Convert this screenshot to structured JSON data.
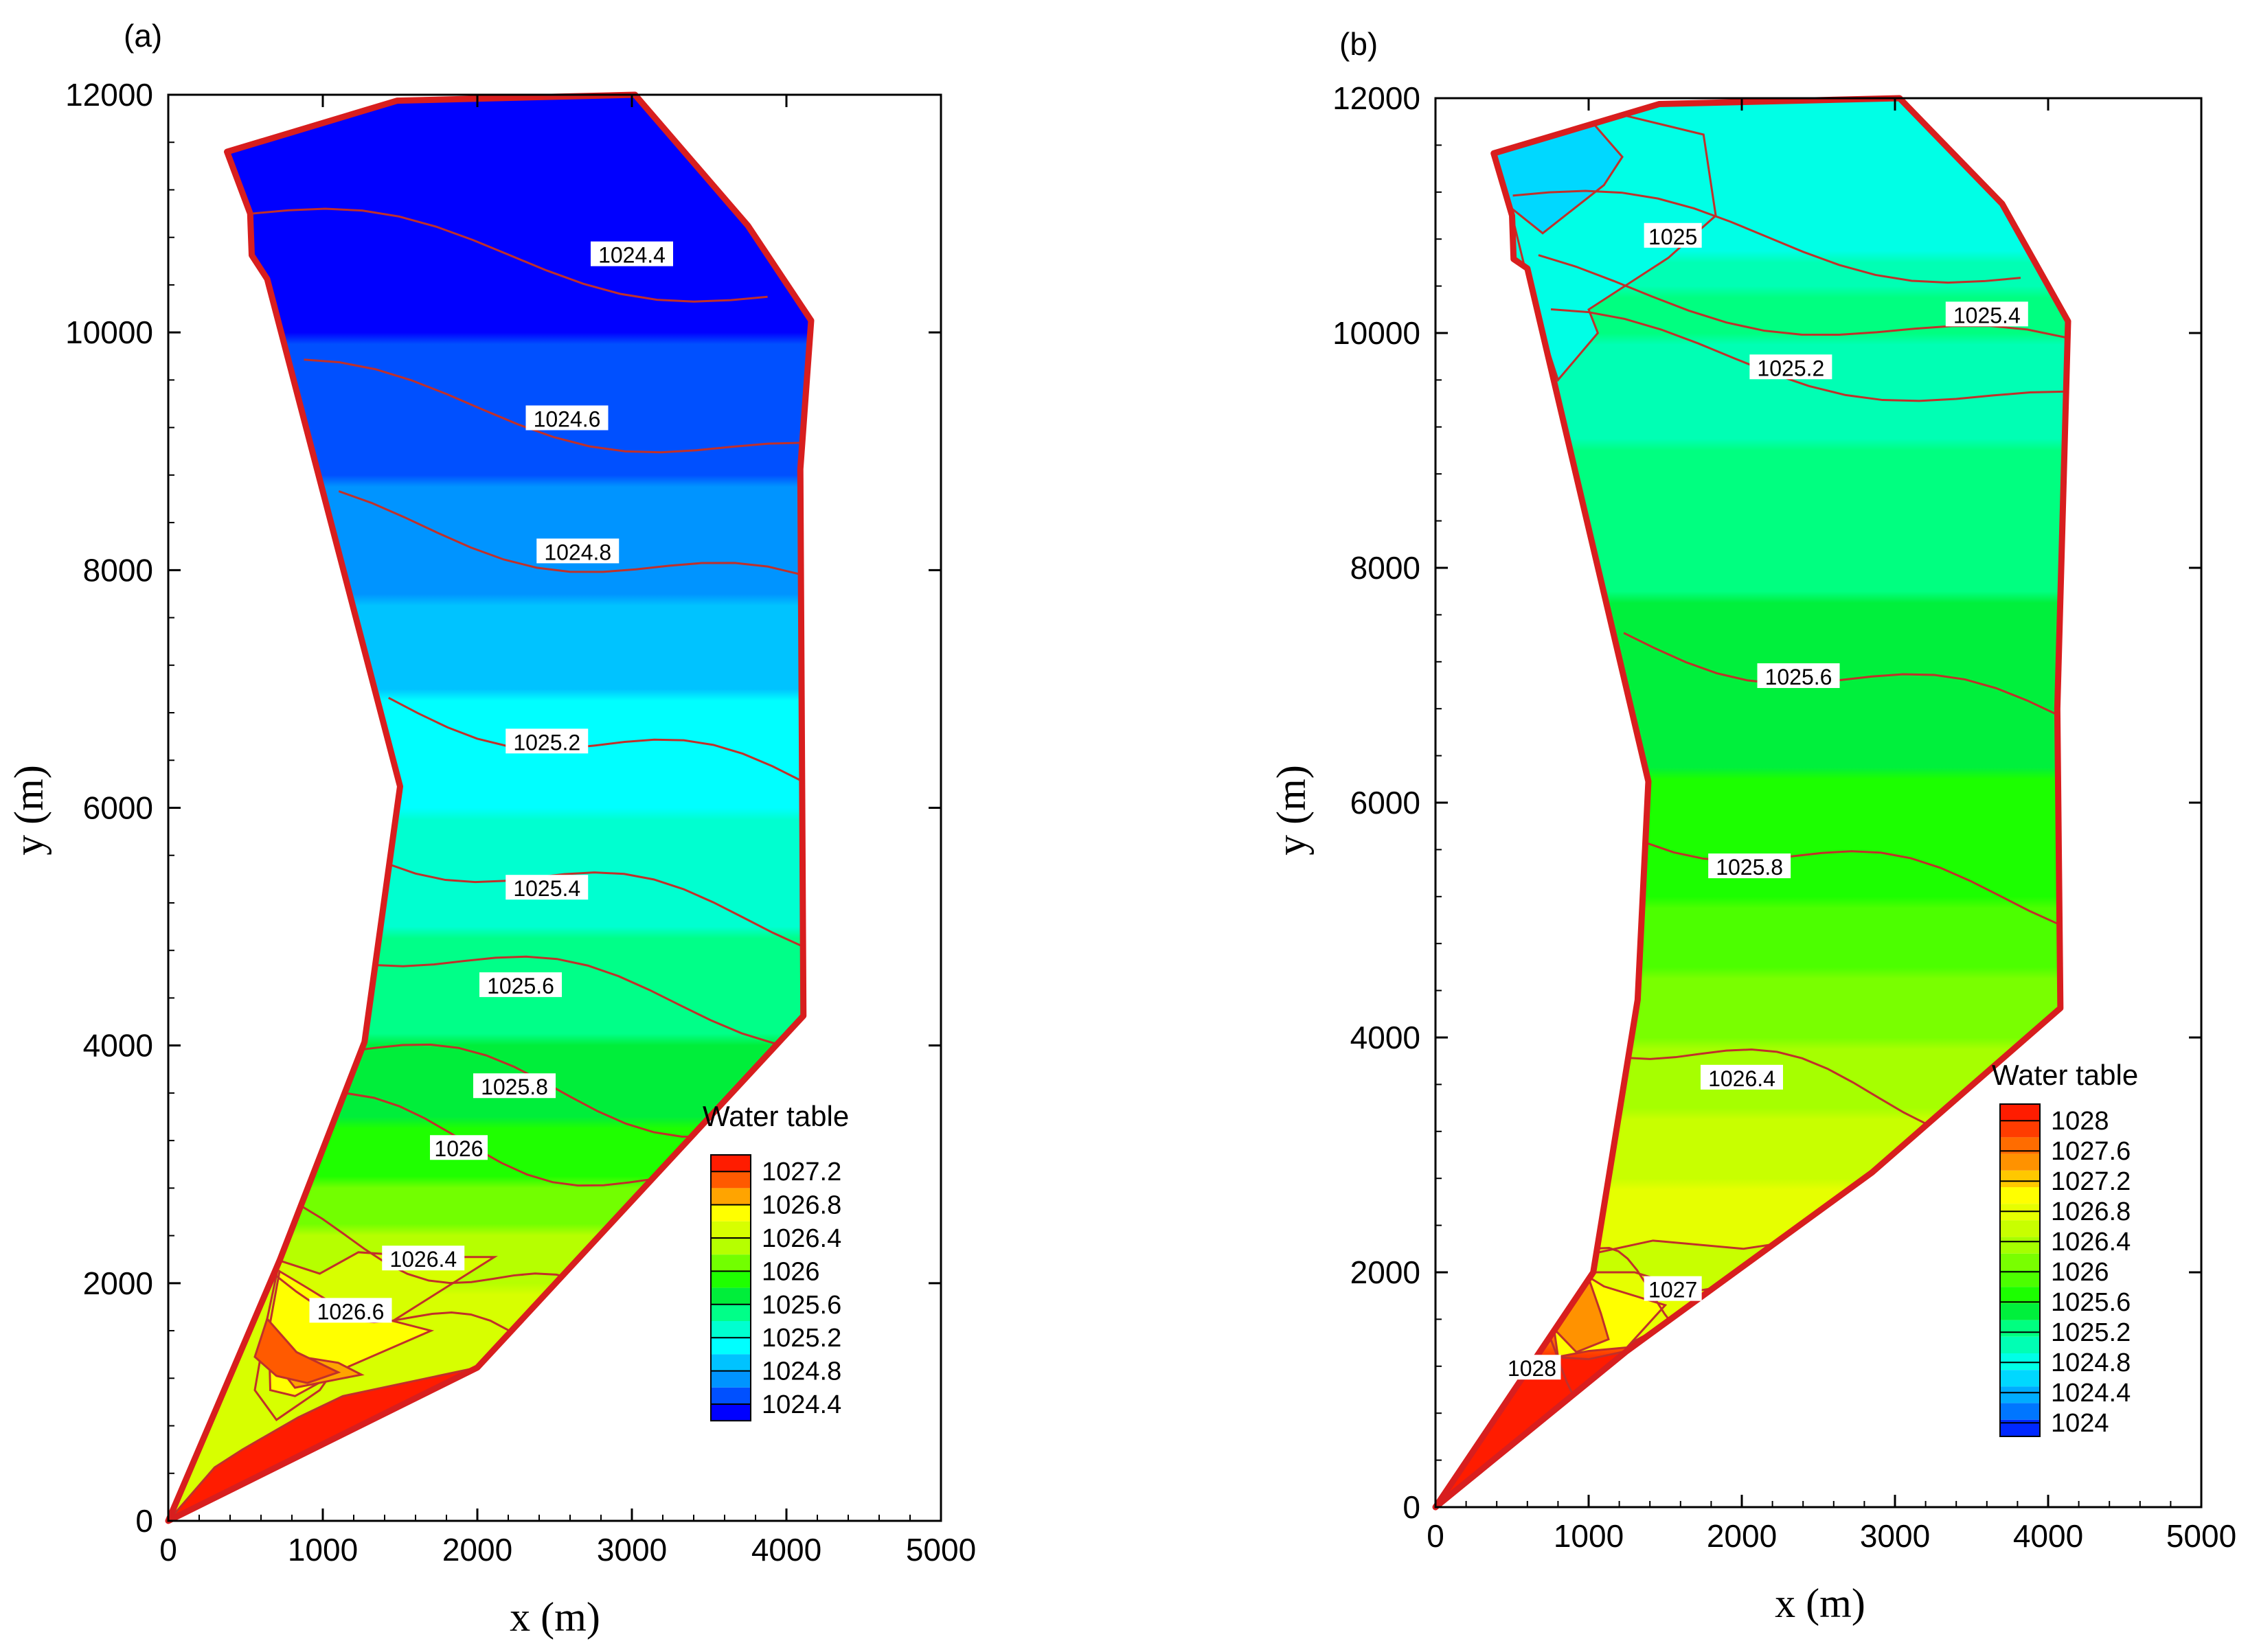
{
  "chart_data": [
    {
      "type": "contour",
      "panel_label": "(a)",
      "title": "",
      "xlabel": "x (m)",
      "ylabel": "y (m)",
      "xlim": [
        0,
        5000
      ],
      "ylim": [
        0,
        12000
      ],
      "xticks": [
        "0",
        "1000",
        "2000",
        "3000",
        "4000",
        "5000"
      ],
      "yticks": [
        "0",
        "2000",
        "4000",
        "6000",
        "8000",
        "10000",
        "12000"
      ],
      "legend": {
        "title": "Water table",
        "placement": "bottom-right",
        "levels": [
          1027.4,
          1027.2,
          1027.0,
          1026.8,
          1026.6,
          1026.4,
          1026.2,
          1026.0,
          1025.8,
          1025.6,
          1025.4,
          1025.2,
          1025.0,
          1024.8,
          1024.6,
          1024.4
        ],
        "colors": [
          "#ff1c00",
          "#ff5a00",
          "#ffa400",
          "#ffff00",
          "#d7ff00",
          "#b6ff00",
          "#72ff00",
          "#1fff00",
          "#00ee3a",
          "#00ff88",
          "#00ffd0",
          "#00ffff",
          "#00c3ff",
          "#0094ff",
          "#0050ff",
          "#0000ff"
        ],
        "labels": [
          "1027.2",
          "1026.8",
          "1026.4",
          "1026",
          "1025.6",
          "1025.2",
          "1024.8",
          "1024.4"
        ]
      },
      "boundary": [
        [
          0,
          0
        ],
        [
          2000,
          1290
        ],
        [
          4110,
          4250
        ],
        [
          4090,
          8850
        ],
        [
          4160,
          10100
        ],
        [
          3750,
          10900
        ],
        [
          3020,
          12000
        ],
        [
          1480,
          11950
        ],
        [
          380,
          11520
        ],
        [
          530,
          11000
        ],
        [
          540,
          10650
        ],
        [
          640,
          10450
        ],
        [
          1500,
          6180
        ],
        [
          1270,
          4030
        ],
        [
          720,
          2190
        ]
      ],
      "zones": [
        {
          "level": 1026.6,
          "points": [
            [
              720,
              2190
            ],
            [
              980,
              2080
            ],
            [
              1230,
              2260
            ],
            [
              1700,
              2220
            ],
            [
              2110,
              2220
            ],
            [
              1170,
              1450
            ],
            [
              980,
              1100
            ],
            [
              700,
              850
            ],
            [
              560,
              1100
            ],
            [
              640,
              1700
            ]
          ]
        },
        {
          "level": 1026.8,
          "points": [
            [
              720,
              2100
            ],
            [
              900,
              1960
            ],
            [
              1100,
              1800
            ],
            [
              1700,
              1600
            ],
            [
              1170,
              1300
            ],
            [
              820,
              1050
            ],
            [
              660,
              1100
            ],
            [
              650,
              1600
            ]
          ]
        },
        {
          "level": 1027.0,
          "points": [
            [
              700,
              1320
            ],
            [
              820,
              1120
            ],
            [
              1130,
              1200
            ],
            [
              1250,
              1230
            ],
            [
              1100,
              1330
            ],
            [
              860,
              1380
            ]
          ]
        },
        {
          "level": 1027.2,
          "points": [
            [
              560,
              1380
            ],
            [
              700,
              1220
            ],
            [
              900,
              1160
            ],
            [
              1100,
              1250
            ],
            [
              830,
              1420
            ],
            [
              640,
              1700
            ]
          ]
        },
        {
          "level": 1027.4,
          "points": [
            [
              0,
              0
            ],
            [
              2000,
              1290
            ],
            [
              1130,
              1050
            ],
            [
              840,
              870
            ],
            [
              480,
              600
            ],
            [
              300,
              450
            ]
          ]
        }
      ],
      "contour_labels": [
        {
          "text": "1024.4",
          "x": 3000,
          "y": 10650
        },
        {
          "text": "1024.6",
          "x": 2580,
          "y": 9270
        },
        {
          "text": "1024.8",
          "x": 2650,
          "y": 8150
        },
        {
          "text": "1025.2",
          "x": 2450,
          "y": 6550
        },
        {
          "text": "1025.4",
          "x": 2450,
          "y": 5320
        },
        {
          "text": "1025.6",
          "x": 2280,
          "y": 4500
        },
        {
          "text": "1025.8",
          "x": 2240,
          "y": 3650
        },
        {
          "text": "1026",
          "x": 1880,
          "y": 3130
        },
        {
          "text": "1026.4",
          "x": 1650,
          "y": 2200
        },
        {
          "text": "1026.6",
          "x": 1180,
          "y": 1760
        }
      ]
    },
    {
      "type": "contour",
      "panel_label": "(b)",
      "title": "",
      "xlabel": "x (m)",
      "ylabel": "y (m)",
      "xlim": [
        0,
        5000
      ],
      "ylim": [
        0,
        12000
      ],
      "xticks": [
        "0",
        "1000",
        "2000",
        "3000",
        "4000",
        "5000"
      ],
      "yticks": [
        "0",
        "2000",
        "4000",
        "6000",
        "8000",
        "10000",
        "12000"
      ],
      "legend": {
        "title": "Water table",
        "placement": "bottom-right",
        "levels": [
          1028.0,
          1027.8,
          1027.6,
          1027.4,
          1027.2,
          1027.0,
          1026.8,
          1026.6,
          1026.4,
          1026.2,
          1026.0,
          1025.8,
          1025.6,
          1025.4,
          1025.2,
          1025.0,
          1024.8,
          1024.6,
          1024.4,
          1024.2
        ],
        "colors": [
          "#ff1c00",
          "#ff3c00",
          "#ff6c00",
          "#ff9200",
          "#ffc800",
          "#ffff00",
          "#e6ff00",
          "#c8ff00",
          "#a6ff00",
          "#79ff00",
          "#4cff00",
          "#1cff00",
          "#00f03c",
          "#00ff80",
          "#00ffb4",
          "#00ffe6",
          "#00d8ff",
          "#00acff",
          "#0076ff",
          "#0028ff"
        ],
        "labels": [
          "1028",
          "1027.6",
          "1027.2",
          "1026.8",
          "1026.4",
          "1026",
          "1025.6",
          "1025.2",
          "1024.8",
          "1024.4",
          "1024"
        ]
      },
      "boundary": [
        [
          0,
          0
        ],
        [
          1250,
          1330
        ],
        [
          2850,
          2850
        ],
        [
          4080,
          4250
        ],
        [
          4060,
          6800
        ],
        [
          4130,
          10100
        ],
        [
          3700,
          11100
        ],
        [
          3030,
          12000
        ],
        [
          1460,
          11950
        ],
        [
          380,
          11530
        ],
        [
          500,
          11000
        ],
        [
          510,
          10630
        ],
        [
          600,
          10550
        ],
        [
          1390,
          6180
        ],
        [
          1320,
          4320
        ],
        [
          1030,
          2000
        ]
      ],
      "zones": [
        {
          "level": 1026.6,
          "points": [
            [
              1030,
              2160
            ],
            [
              1420,
              2270
            ],
            [
              2010,
              2200
            ],
            [
              2620,
              2320
            ],
            [
              1800,
              1820
            ],
            [
              1480,
              1730
            ],
            [
              1020,
              1650
            ]
          ]
        },
        {
          "level": 1026.8,
          "points": [
            [
              1020,
              2000
            ],
            [
              1300,
              2000
            ],
            [
              1700,
              1840
            ],
            [
              1980,
              1900
            ],
            [
              1820,
              1780
            ],
            [
              1250,
              1380
            ],
            [
              1130,
              1350
            ],
            [
              1000,
              1350
            ]
          ]
        },
        {
          "level": 1027.0,
          "points": [
            [
              700,
              2200
            ],
            [
              1100,
              1880
            ],
            [
              1500,
              1720
            ],
            [
              1250,
              1360
            ],
            [
              1000,
              1330
            ],
            [
              800,
              1280
            ]
          ]
        },
        {
          "level": 1027.4,
          "points": [
            [
              720,
              2170
            ],
            [
              1000,
              1950
            ],
            [
              1080,
              1650
            ],
            [
              1130,
              1430
            ],
            [
              920,
              1320
            ],
            [
              750,
              1550
            ]
          ]
        },
        {
          "level": 1027.8,
          "points": [
            [
              650,
              2030
            ],
            [
              780,
              1850
            ],
            [
              830,
              1640
            ],
            [
              760,
              1500
            ],
            [
              660,
              1600
            ]
          ]
        },
        {
          "level": 1028.0,
          "points": [
            [
              0,
              0
            ],
            [
              1250,
              1330
            ],
            [
              1000,
              1260
            ],
            [
              750,
              1280
            ],
            [
              500,
              1300
            ],
            [
              300,
              1300
            ]
          ]
        },
        {
          "level": 1025.0,
          "points": [
            [
              380,
              11530
            ],
            [
              520,
              11420
            ],
            [
              760,
              11690
            ],
            [
              1150,
              11880
            ],
            [
              1750,
              11690
            ],
            [
              1830,
              11000
            ],
            [
              1520,
              10640
            ],
            [
              1000,
              10200
            ],
            [
              1060,
              10000
            ],
            [
              800,
              9600
            ],
            [
              650,
              10200
            ],
            [
              500,
              11000
            ]
          ]
        },
        {
          "level": 1024.8,
          "points": [
            [
              380,
              11530
            ],
            [
              1040,
              11770
            ],
            [
              1220,
              11500
            ],
            [
              1100,
              11260
            ],
            [
              700,
              10850
            ],
            [
              460,
              11100
            ]
          ]
        }
      ],
      "contour_labels": [
        {
          "text": "1025",
          "x": 1550,
          "y": 10820
        },
        {
          "text": "1025.2",
          "x": 2320,
          "y": 9700
        },
        {
          "text": "1025.4",
          "x": 3600,
          "y": 10150
        },
        {
          "text": "1025.6",
          "x": 2370,
          "y": 7070
        },
        {
          "text": "1025.8",
          "x": 2050,
          "y": 5450
        },
        {
          "text": "1026.4",
          "x": 2000,
          "y": 3650
        },
        {
          "text": "1027",
          "x": 1550,
          "y": 1850
        },
        {
          "text": "1028",
          "x": 630,
          "y": 1180
        }
      ]
    }
  ]
}
